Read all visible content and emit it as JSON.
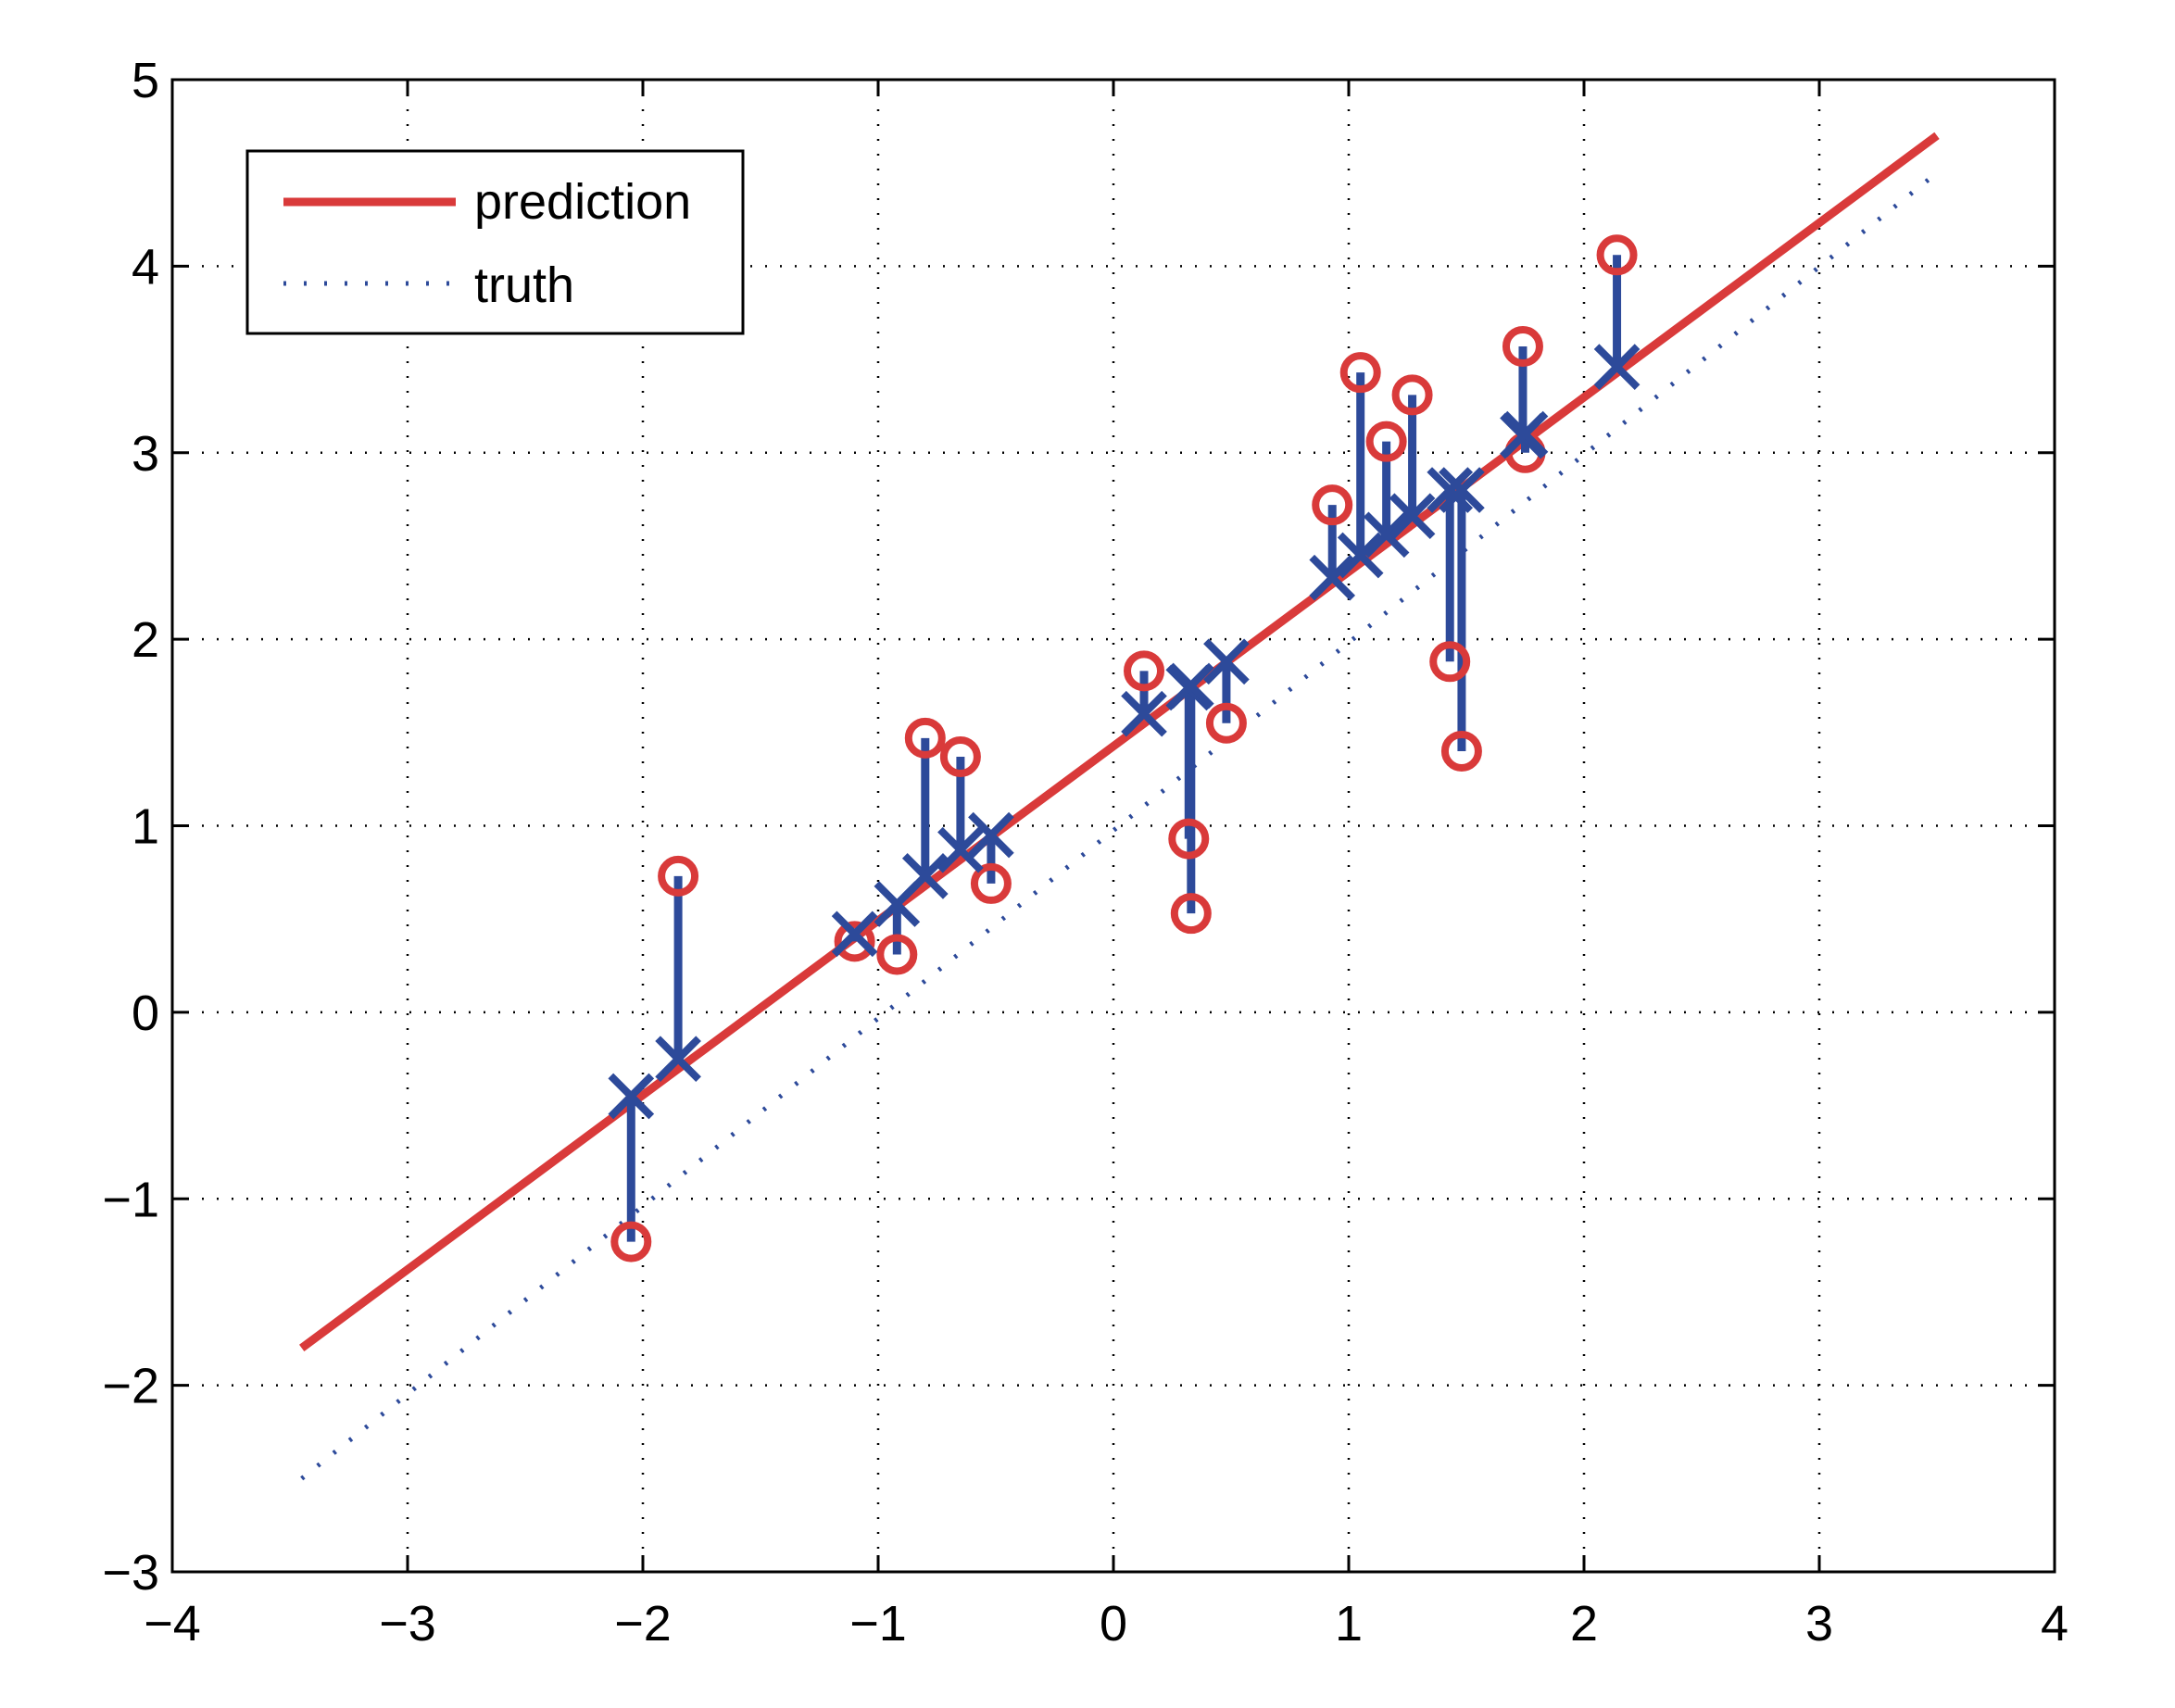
{
  "chart_data": {
    "type": "scatter",
    "xlim": [
      -4,
      4
    ],
    "ylim": [
      -3,
      5
    ],
    "xticks": [
      -4,
      -3,
      -2,
      -1,
      0,
      1,
      2,
      3,
      4
    ],
    "yticks": [
      -3,
      -2,
      -1,
      0,
      1,
      2,
      3,
      4,
      5
    ],
    "xtick_labels": [
      "−4",
      "−3",
      "−2",
      "−1",
      "0",
      "1",
      "2",
      "3",
      "4"
    ],
    "ytick_labels": [
      "−3",
      "−2",
      "−1",
      "0",
      "1",
      "2",
      "3",
      "4",
      "5"
    ],
    "grid": true,
    "legend_position": "top-left",
    "lines": [
      {
        "name": "prediction",
        "style": "solid",
        "color": "#d93a3a",
        "x": [
          -3.45,
          3.5
        ],
        "y": [
          -1.8,
          4.7
        ]
      },
      {
        "name": "truth",
        "style": "dotted",
        "color": "#2d4a9a",
        "x": [
          -3.45,
          3.5
        ],
        "y": [
          -2.5,
          4.5
        ]
      }
    ],
    "observations": {
      "marker": "circle",
      "color": "#d93a3a",
      "x": [
        -2.05,
        -1.85,
        -1.1,
        -0.92,
        -0.8,
        -0.65,
        -0.52,
        0.13,
        0.32,
        0.33,
        0.48,
        0.93,
        1.05,
        1.16,
        1.27,
        1.43,
        1.48,
        1.74,
        1.75,
        2.14
      ],
      "y": [
        -1.23,
        0.73,
        0.38,
        0.31,
        1.47,
        1.37,
        0.69,
        1.83,
        0.93,
        0.53,
        1.55,
        2.72,
        3.43,
        3.06,
        3.31,
        1.88,
        1.4,
        3.57,
        3.0,
        4.06
      ]
    },
    "predictions": {
      "marker": "x",
      "color": "#2d4a9a",
      "y": [
        -0.45,
        -0.25,
        0.42,
        0.58,
        0.73,
        0.87,
        0.95,
        1.6,
        1.74,
        1.75,
        1.88,
        2.33,
        2.45,
        2.56,
        2.66,
        2.8,
        2.8,
        3.09,
        3.1,
        3.46
      ]
    },
    "residual_color": "#2d4a9a"
  }
}
